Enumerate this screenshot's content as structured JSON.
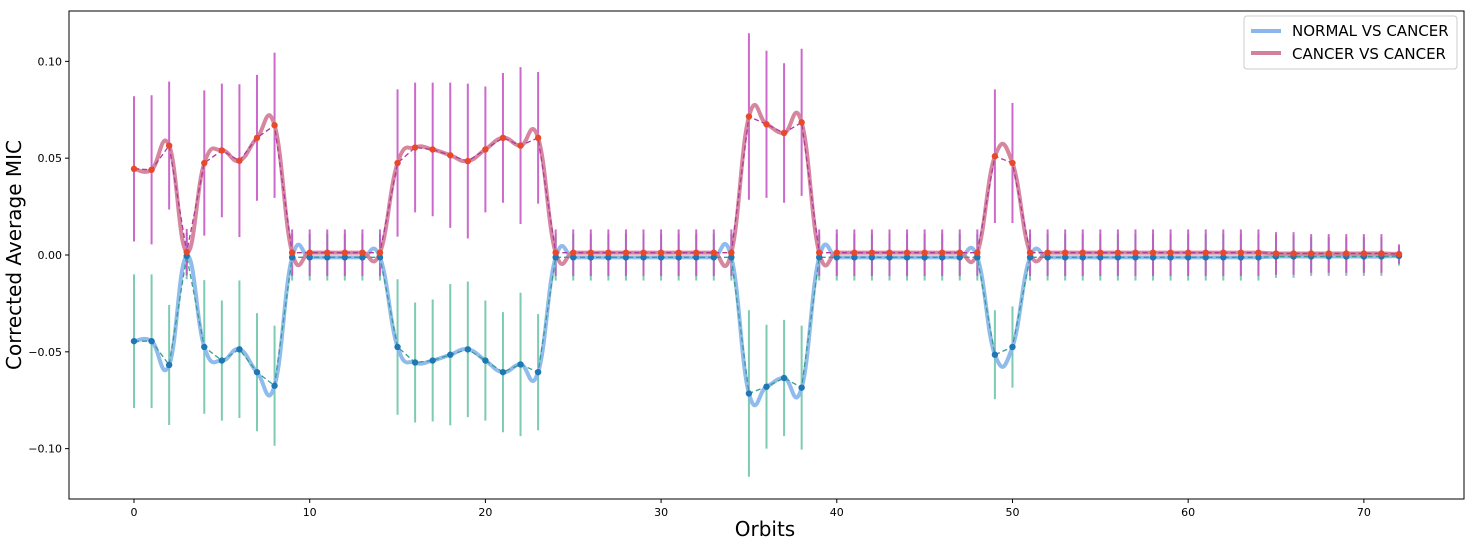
{
  "chart_data": {
    "type": "line",
    "xlabel": "Orbits",
    "ylabel": "Corrected Average MIC",
    "xlim": [
      -3.7,
      75.7
    ],
    "ylim": [
      -0.126,
      0.126
    ],
    "xticks": [
      0,
      10,
      20,
      30,
      40,
      50,
      60,
      70
    ],
    "yticks": [
      -0.1,
      -0.05,
      0.0,
      0.05,
      0.1
    ],
    "ytick_labels": [
      "−0.10",
      "−0.05",
      "0.00",
      "0.05",
      "0.10"
    ],
    "grid": false,
    "legend_position": "top-right",
    "x": [
      0,
      1,
      2,
      3,
      4,
      5,
      6,
      7,
      8,
      9,
      10,
      11,
      12,
      13,
      14,
      15,
      16,
      17,
      18,
      19,
      20,
      21,
      22,
      23,
      24,
      25,
      26,
      27,
      28,
      29,
      30,
      31,
      32,
      33,
      34,
      35,
      36,
      37,
      38,
      39,
      40,
      41,
      42,
      43,
      44,
      45,
      46,
      47,
      48,
      49,
      50,
      51,
      52,
      53,
      54,
      55,
      56,
      57,
      58,
      59,
      60,
      61,
      62,
      63,
      64,
      65,
      66,
      67,
      68,
      69,
      70,
      71,
      72
    ],
    "series": [
      {
        "name": "NORMAL VS CANCER",
        "color": "#89b7ec",
        "marker_color": "#1f77b4",
        "errorbar_color": "#66c2a5",
        "values": [
          -0.0445,
          -0.0445,
          -0.0568,
          -0.0005,
          -0.0475,
          -0.0545,
          -0.0487,
          -0.0605,
          -0.0675,
          -0.0012,
          -0.0012,
          -0.0012,
          -0.0012,
          -0.0012,
          -0.0012,
          -0.0475,
          -0.0555,
          -0.0545,
          -0.0515,
          -0.0487,
          -0.0545,
          -0.0605,
          -0.0565,
          -0.0605,
          -0.0012,
          -0.0012,
          -0.0012,
          -0.0012,
          -0.0012,
          -0.0012,
          -0.0012,
          -0.0012,
          -0.0012,
          -0.0012,
          -0.0012,
          -0.0715,
          -0.068,
          -0.0635,
          -0.0685,
          -0.0012,
          -0.0012,
          -0.0012,
          -0.0012,
          -0.0012,
          -0.0012,
          -0.0012,
          -0.0012,
          -0.0012,
          -0.0012,
          -0.0515,
          -0.0475,
          -0.0012,
          -0.0012,
          -0.0012,
          -0.0012,
          -0.0012,
          -0.0012,
          -0.0012,
          -0.0012,
          -0.0012,
          -0.0012,
          -0.0012,
          -0.0012,
          -0.0012,
          -0.0012,
          -0.0008,
          -0.0008,
          -0.0008,
          -0.0008,
          -0.0008,
          -0.0008,
          -0.0008,
          -0.0005
        ],
        "errors": [
          0.0345,
          0.0345,
          0.031,
          0.012,
          0.0345,
          0.031,
          0.0355,
          0.0305,
          0.031,
          0.012,
          0.012,
          0.012,
          0.012,
          0.012,
          0.012,
          0.035,
          0.031,
          0.0315,
          0.0365,
          0.035,
          0.031,
          0.031,
          0.037,
          0.03,
          0.012,
          0.012,
          0.012,
          0.012,
          0.012,
          0.012,
          0.012,
          0.012,
          0.012,
          0.012,
          0.012,
          0.043,
          0.032,
          0.03,
          0.032,
          0.012,
          0.012,
          0.012,
          0.012,
          0.012,
          0.012,
          0.012,
          0.012,
          0.012,
          0.012,
          0.023,
          0.021,
          0.012,
          0.012,
          0.012,
          0.012,
          0.012,
          0.012,
          0.012,
          0.012,
          0.012,
          0.012,
          0.012,
          0.012,
          0.012,
          0.012,
          0.011,
          0.011,
          0.01,
          0.01,
          0.01,
          0.01,
          0.01,
          0.005
        ]
      },
      {
        "name": "CANCER VS CANCER",
        "color": "#d4809a",
        "marker_color": "#e8492b",
        "errorbar_color": "#c44fc4",
        "values": [
          0.0445,
          0.044,
          0.0565,
          0.0015,
          0.0475,
          0.054,
          0.0487,
          0.0605,
          0.067,
          0.0012,
          0.0012,
          0.0012,
          0.0012,
          0.0012,
          0.0012,
          0.0475,
          0.0555,
          0.0545,
          0.0515,
          0.0485,
          0.0545,
          0.0605,
          0.0565,
          0.0605,
          0.0012,
          0.0012,
          0.0012,
          0.0012,
          0.0012,
          0.0012,
          0.0012,
          0.0012,
          0.0012,
          0.0012,
          0.0012,
          0.0715,
          0.0675,
          0.063,
          0.0685,
          0.0012,
          0.0012,
          0.0012,
          0.0012,
          0.0012,
          0.0012,
          0.0012,
          0.0012,
          0.0012,
          0.0012,
          0.051,
          0.0475,
          0.0012,
          0.0012,
          0.0012,
          0.0012,
          0.0012,
          0.0012,
          0.0012,
          0.0012,
          0.0012,
          0.0012,
          0.0012,
          0.0012,
          0.0012,
          0.0012,
          0.0008,
          0.0008,
          0.0008,
          0.0008,
          0.0008,
          0.0008,
          0.0008,
          0.0005
        ],
        "errors": [
          0.0375,
          0.0385,
          0.033,
          0.012,
          0.0375,
          0.0345,
          0.0395,
          0.0325,
          0.0375,
          0.012,
          0.012,
          0.012,
          0.012,
          0.012,
          0.012,
          0.038,
          0.0335,
          0.0345,
          0.0375,
          0.04,
          0.0325,
          0.0335,
          0.0405,
          0.034,
          0.012,
          0.012,
          0.012,
          0.012,
          0.012,
          0.012,
          0.012,
          0.012,
          0.012,
          0.012,
          0.012,
          0.043,
          0.038,
          0.036,
          0.038,
          0.012,
          0.012,
          0.012,
          0.012,
          0.012,
          0.012,
          0.012,
          0.012,
          0.012,
          0.012,
          0.0345,
          0.031,
          0.012,
          0.012,
          0.012,
          0.012,
          0.012,
          0.012,
          0.012,
          0.012,
          0.012,
          0.012,
          0.012,
          0.012,
          0.012,
          0.012,
          0.011,
          0.011,
          0.01,
          0.01,
          0.01,
          0.01,
          0.01,
          0.005
        ]
      }
    ]
  }
}
